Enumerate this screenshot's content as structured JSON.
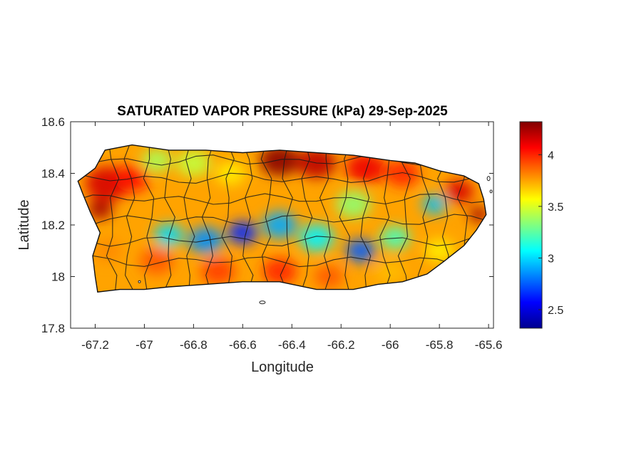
{
  "chart_data": {
    "type": "heatmap",
    "title": "SATURATED VAPOR PRESSURE (kPa) 29-Sep-2025",
    "xlabel": "Longitude",
    "ylabel": "Latitude",
    "xlim": [
      -67.3,
      -65.58
    ],
    "ylim": [
      17.8,
      18.6
    ],
    "xticks": [
      -67.2,
      -67,
      -66.8,
      -66.6,
      -66.4,
      -66.2,
      -66,
      -65.8,
      -65.6
    ],
    "xtick_labels": [
      "-67.2",
      "-67",
      "-66.8",
      "-66.6",
      "-66.4",
      "-66.2",
      "-66",
      "-65.8",
      "-65.6"
    ],
    "yticks": [
      17.8,
      18,
      18.2,
      18.4,
      18.6
    ],
    "ytick_labels": [
      "17.8",
      "18",
      "18.2",
      "18.4",
      "18.6"
    ],
    "colorbar": {
      "colormap": "jet",
      "range": [
        2.32,
        4.32
      ],
      "ticks": [
        2.5,
        3,
        3.5,
        4
      ],
      "tick_labels": [
        "2.5",
        "3",
        "3.5",
        "4"
      ]
    },
    "grid": false,
    "coastline": [
      [
        -67.27,
        18.37
      ],
      [
        -67.2,
        18.42
      ],
      [
        -67.16,
        18.49
      ],
      [
        -67.05,
        18.51
      ],
      [
        -66.9,
        18.49
      ],
      [
        -66.75,
        18.49
      ],
      [
        -66.6,
        18.48
      ],
      [
        -66.45,
        18.49
      ],
      [
        -66.3,
        18.48
      ],
      [
        -66.15,
        18.47
      ],
      [
        -66.0,
        18.45
      ],
      [
        -65.9,
        18.44
      ],
      [
        -65.8,
        18.41
      ],
      [
        -65.7,
        18.39
      ],
      [
        -65.64,
        18.36
      ],
      [
        -65.62,
        18.3
      ],
      [
        -65.61,
        18.24
      ],
      [
        -65.65,
        18.18
      ],
      [
        -65.7,
        18.12
      ],
      [
        -65.78,
        18.06
      ],
      [
        -65.85,
        18.01
      ],
      [
        -65.95,
        17.98
      ],
      [
        -66.05,
        17.97
      ],
      [
        -66.15,
        17.95
      ],
      [
        -66.3,
        17.95
      ],
      [
        -66.45,
        17.98
      ],
      [
        -66.6,
        17.98
      ],
      [
        -66.75,
        17.97
      ],
      [
        -66.9,
        17.96
      ],
      [
        -67.0,
        17.95
      ],
      [
        -67.1,
        17.95
      ],
      [
        -67.19,
        17.94
      ],
      [
        -67.2,
        18.0
      ],
      [
        -67.21,
        18.08
      ],
      [
        -67.18,
        18.17
      ],
      [
        -67.22,
        18.25
      ],
      [
        -67.25,
        18.32
      ]
    ],
    "vapor_field": [
      {
        "lon": -67.15,
        "lat": 18.36,
        "value": 4.15,
        "spread": 0.09
      },
      {
        "lon": -67.18,
        "lat": 18.26,
        "value": 4.25,
        "spread": 0.05
      },
      {
        "lon": -67.05,
        "lat": 18.38,
        "value": 4.05,
        "spread": 0.07
      },
      {
        "lon": -66.95,
        "lat": 18.45,
        "value": 3.4,
        "spread": 0.06
      },
      {
        "lon": -66.8,
        "lat": 18.44,
        "value": 3.45,
        "spread": 0.07
      },
      {
        "lon": -66.65,
        "lat": 18.4,
        "value": 3.6,
        "spread": 0.06
      },
      {
        "lon": -66.45,
        "lat": 18.45,
        "value": 4.3,
        "spread": 0.08
      },
      {
        "lon": -66.3,
        "lat": 18.44,
        "value": 4.2,
        "spread": 0.08
      },
      {
        "lon": -66.1,
        "lat": 18.42,
        "value": 4.1,
        "spread": 0.08
      },
      {
        "lon": -65.95,
        "lat": 18.4,
        "value": 4.0,
        "spread": 0.07
      },
      {
        "lon": -65.72,
        "lat": 18.33,
        "value": 4.15,
        "spread": 0.06
      },
      {
        "lon": -65.64,
        "lat": 18.24,
        "value": 4.25,
        "spread": 0.04
      },
      {
        "lon": -66.6,
        "lat": 18.17,
        "value": 2.65,
        "spread": 0.06
      },
      {
        "lon": -66.75,
        "lat": 18.14,
        "value": 2.85,
        "spread": 0.07
      },
      {
        "lon": -66.9,
        "lat": 18.16,
        "value": 3.0,
        "spread": 0.06
      },
      {
        "lon": -66.45,
        "lat": 18.2,
        "value": 2.9,
        "spread": 0.07
      },
      {
        "lon": -66.3,
        "lat": 18.15,
        "value": 3.05,
        "spread": 0.07
      },
      {
        "lon": -66.12,
        "lat": 18.1,
        "value": 2.75,
        "spread": 0.06
      },
      {
        "lon": -65.98,
        "lat": 18.15,
        "value": 3.2,
        "spread": 0.06
      },
      {
        "lon": -65.82,
        "lat": 18.28,
        "value": 2.95,
        "spread": 0.05
      },
      {
        "lon": -66.15,
        "lat": 18.28,
        "value": 3.35,
        "spread": 0.07
      },
      {
        "lon": -66.95,
        "lat": 18.06,
        "value": 3.9,
        "spread": 0.07
      },
      {
        "lon": -66.7,
        "lat": 18.02,
        "value": 3.95,
        "spread": 0.07
      },
      {
        "lon": -66.45,
        "lat": 18.02,
        "value": 4.0,
        "spread": 0.07
      },
      {
        "lon": -66.25,
        "lat": 18.0,
        "value": 3.9,
        "spread": 0.06
      },
      {
        "lon": -66.0,
        "lat": 18.02,
        "value": 3.7,
        "spread": 0.06
      },
      {
        "lon": -65.8,
        "lat": 18.1,
        "value": 3.6,
        "spread": 0.06
      },
      {
        "lon": -67.15,
        "lat": 18.1,
        "value": 3.8,
        "spread": 0.06
      }
    ]
  }
}
